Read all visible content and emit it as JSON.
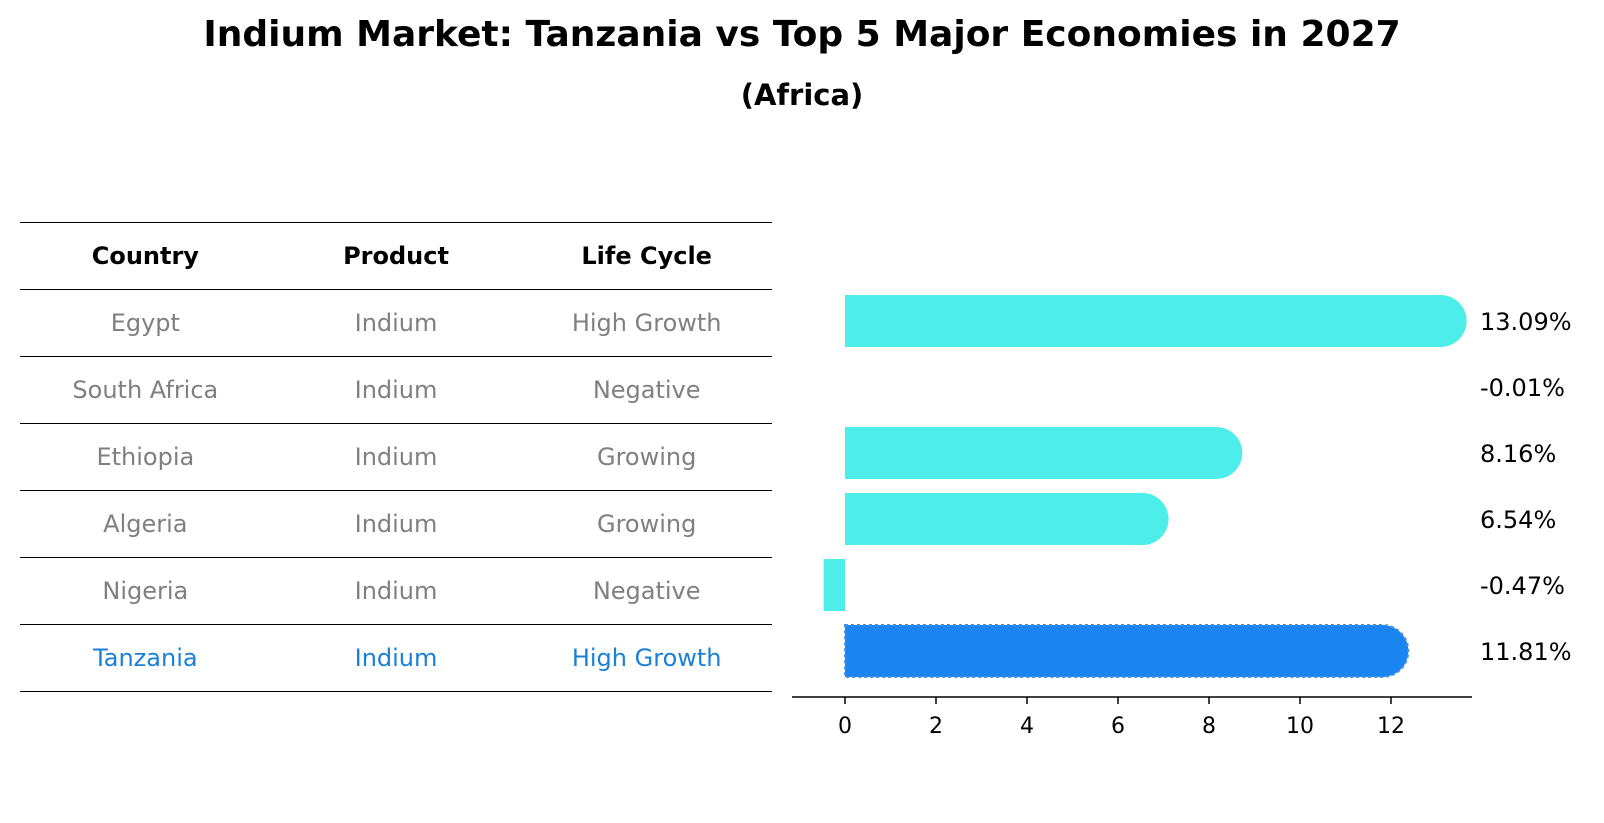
{
  "chart_data": {
    "type": "bar",
    "orientation": "horizontal",
    "title": "Indium Market: Tanzania vs Top 5 Major Economies in 2027",
    "subtitle": "(Africa)",
    "table": {
      "columns": [
        "Country",
        "Product",
        "Life Cycle"
      ],
      "rows": [
        {
          "country": "Egypt",
          "product": "Indium",
          "life_cycle": "High Growth"
        },
        {
          "country": "South Africa",
          "product": "Indium",
          "life_cycle": "Negative"
        },
        {
          "country": "Ethiopia",
          "product": "Indium",
          "life_cycle": "Growing"
        },
        {
          "country": "Algeria",
          "product": "Indium",
          "life_cycle": "Growing"
        },
        {
          "country": "Nigeria",
          "product": "Indium",
          "life_cycle": "Negative"
        },
        {
          "country": "Tanzania",
          "product": "Indium",
          "life_cycle": "High Growth"
        }
      ]
    },
    "categories": [
      "Egypt",
      "South Africa",
      "Ethiopia",
      "Algeria",
      "Nigeria",
      "Tanzania"
    ],
    "values": [
      13.09,
      -0.01,
      8.16,
      6.54,
      -0.47,
      11.81
    ],
    "value_labels": [
      "13.09%",
      "-0.01%",
      "8.16%",
      "6.54%",
      "-0.47%",
      "11.81%"
    ],
    "highlight": "Tanzania",
    "xlim": [
      -1.2,
      13.8
    ],
    "xticks": [
      0,
      2,
      4,
      6,
      8,
      10,
      12
    ],
    "xtick_labels": [
      "0",
      "2",
      "4",
      "6",
      "8",
      "10",
      "12"
    ],
    "colors": {
      "default": "#4deeea",
      "highlight": "#1a85f0",
      "highlight_text": "#1a80d8",
      "muted_text": "#808080"
    }
  }
}
